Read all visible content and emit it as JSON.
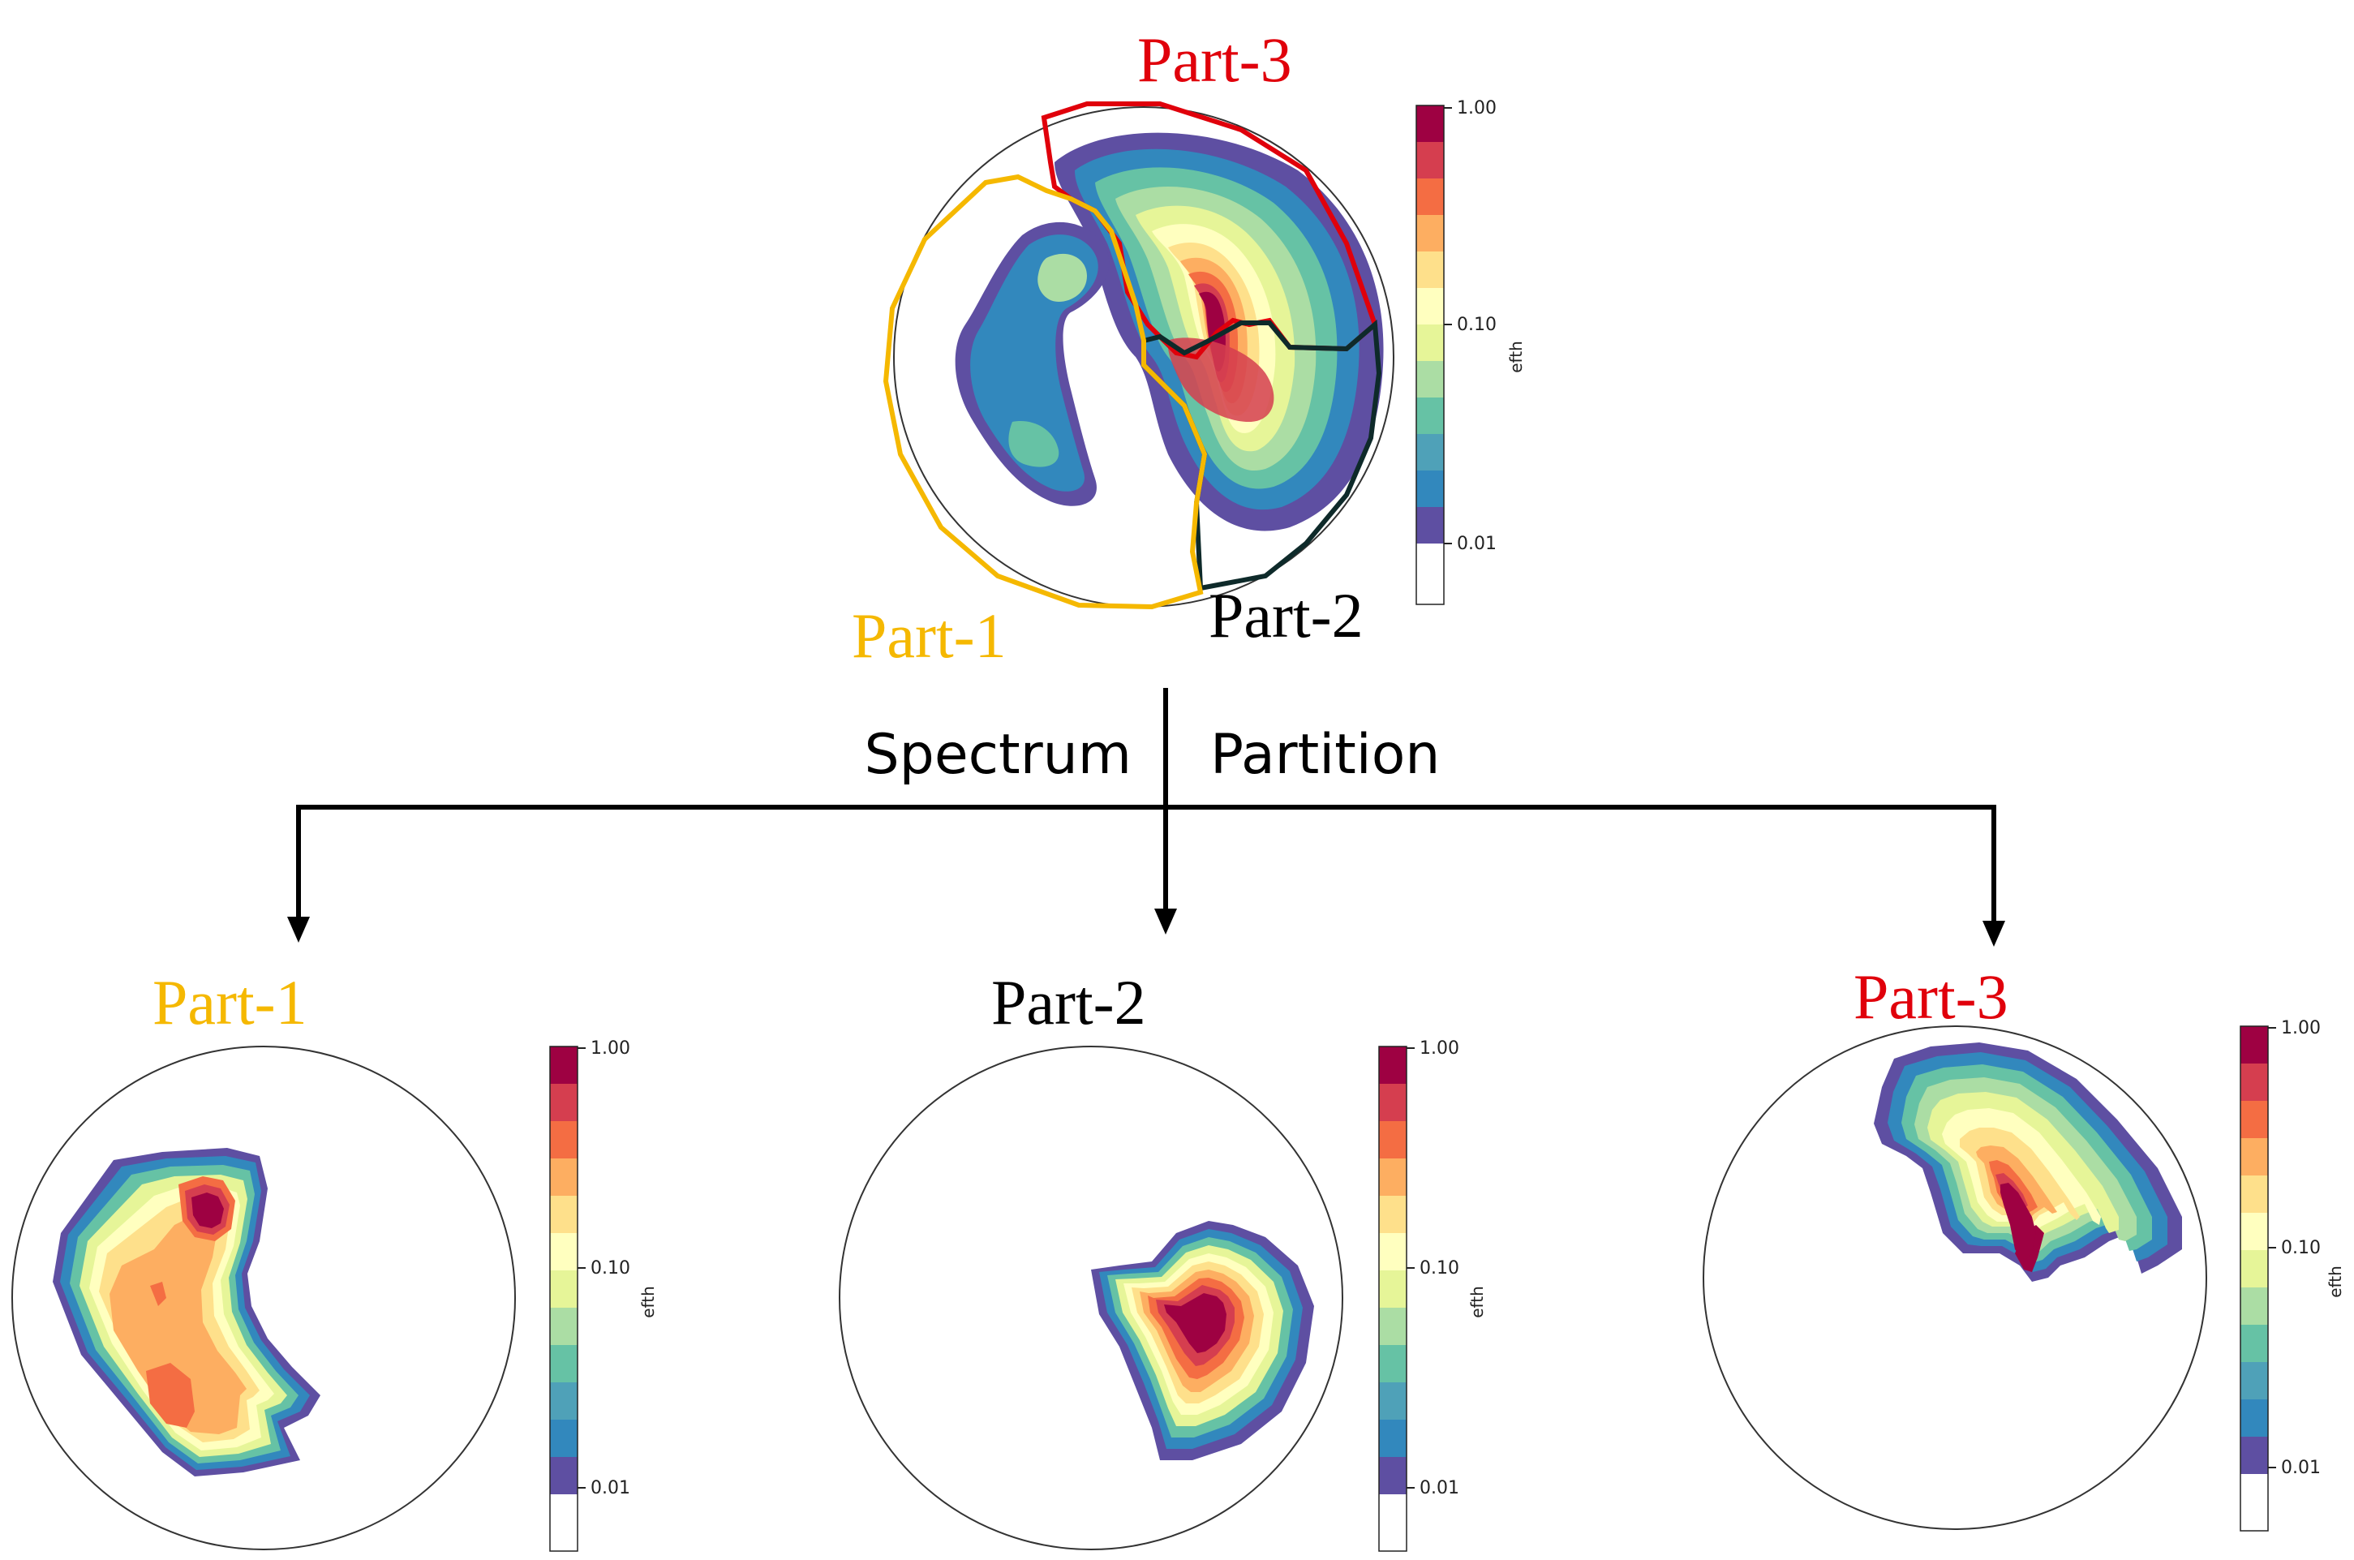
{
  "colors": {
    "part1": "#F5B800",
    "part2": "#000000",
    "part3": "#E0000B",
    "part2_outline": "#0E2A2A",
    "axis_circle": "#333333",
    "spectral_palette": [
      "#5E4FA2",
      "#3288BD",
      "#4FA1B8",
      "#66C2A5",
      "#ABDDA4",
      "#E6F598",
      "#FFFFBF",
      "#FEE08B",
      "#FDAE61",
      "#F46D43",
      "#D53E4F",
      "#9E0142"
    ]
  },
  "top": {
    "labels": {
      "part1": "Part-1",
      "part2": "Part-2",
      "part3": "Part-3"
    },
    "colorbar": {
      "label": "efth",
      "ticks": [
        "1.00",
        "0.10",
        "0.01"
      ]
    }
  },
  "flow": {
    "left_label": "Spectrum",
    "right_label": "Partition"
  },
  "bottom": [
    {
      "title": "Part-1",
      "colorbar_label": "efth",
      "ticks": [
        "1.00",
        "0.10",
        "0.01"
      ]
    },
    {
      "title": "Part-2",
      "colorbar_label": "efth",
      "ticks": [
        "1.00",
        "0.10",
        "0.01"
      ]
    },
    {
      "title": "Part-3",
      "colorbar_label": "efth",
      "ticks": [
        "1.00",
        "0.10",
        "0.01"
      ]
    }
  ]
}
